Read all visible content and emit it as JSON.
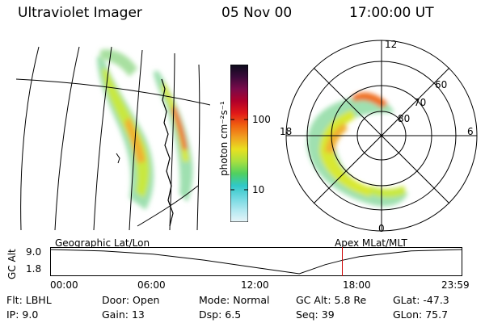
{
  "header": {
    "title": "Ultraviolet Imager",
    "date": "05 Nov 00",
    "time": "17:00:00 UT"
  },
  "colorbar": {
    "label": "photon cm⁻²s⁻¹",
    "ticks": [
      "100",
      "10"
    ],
    "colors": [
      "#0b0b1a",
      "#3a0a3a",
      "#7a0a4a",
      "#b0002a",
      "#e01818",
      "#f06010",
      "#f0a020",
      "#e8e020",
      "#a8e040",
      "#50d060",
      "#30c8c8",
      "#70d8e0",
      "#b0e8f0",
      "#e8f4f8"
    ]
  },
  "polar": {
    "labels": {
      "top": "12",
      "left": "18",
      "right": "6",
      "bottom": "0"
    },
    "lat_labels": [
      "60",
      "70",
      "80"
    ]
  },
  "altitude": {
    "left_label": "Geographic Lat/Lon",
    "right_label": "Apex MLat/MLT",
    "y_title": "GC Alt",
    "y_ticks": [
      "9.0",
      "1.8"
    ],
    "x_ticks": [
      "00:00",
      "06:00",
      "12:00",
      "18:00",
      "23:59"
    ],
    "marker_color": "#cc0000"
  },
  "info": {
    "row1": [
      {
        "k": "Flt:",
        "v": "LBHL"
      },
      {
        "k": "Door:",
        "v": "Open"
      },
      {
        "k": "Mode:",
        "v": "Normal"
      },
      {
        "k": "GC Alt:",
        "v": "5.8 Re"
      },
      {
        "k": "GLat:",
        "v": "-47.3"
      }
    ],
    "row2": [
      {
        "k": "IP:",
        "v": "9.0"
      },
      {
        "k": "Gain:",
        "v": "13"
      },
      {
        "k": "Dsp:",
        "v": "6.5"
      },
      {
        "k": "Seq:",
        "v": "39"
      },
      {
        "k": "GLon:",
        "v": "75.7"
      }
    ]
  },
  "chart_data": [
    {
      "type": "line",
      "title": "",
      "xlabel": "",
      "ylabel": "GC Alt",
      "x": [
        "00:00",
        "03:00",
        "06:00",
        "09:00",
        "12:00",
        "14:30",
        "16:00",
        "17:00",
        "18:00",
        "21:00",
        "23:59"
      ],
      "values": [
        9.0,
        8.6,
        7.6,
        5.8,
        3.6,
        1.8,
        4.5,
        5.8,
        6.9,
        8.6,
        9.0
      ],
      "current_time": "17:00",
      "ylim": [
        1.8,
        9.0
      ]
    }
  ]
}
